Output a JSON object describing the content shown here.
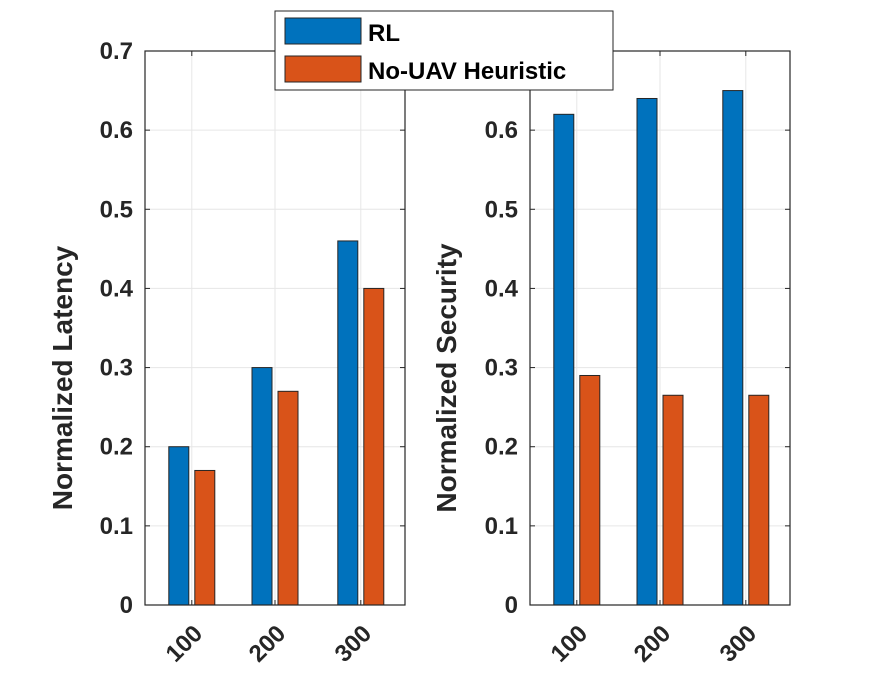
{
  "chart_data": [
    {
      "type": "bar",
      "categories": [
        "100",
        "200",
        "300"
      ],
      "series": [
        {
          "name": "RL",
          "values": [
            0.2,
            0.3,
            0.46
          ]
        },
        {
          "name": "No-UAV Heuristic",
          "values": [
            0.17,
            0.27,
            0.4
          ]
        }
      ],
      "title": "",
      "xlabel": "",
      "ylabel": "Normalized Latency",
      "ylim": [
        0,
        0.7
      ],
      "yticks": [
        "0",
        "0.1",
        "0.2",
        "0.3",
        "0.4",
        "0.5",
        "0.6",
        "0.7"
      ],
      "grid": true
    },
    {
      "type": "bar",
      "categories": [
        "100",
        "200",
        "300"
      ],
      "series": [
        {
          "name": "RL",
          "values": [
            0.62,
            0.64,
            0.65
          ]
        },
        {
          "name": "No-UAV Heuristic",
          "values": [
            0.29,
            0.265,
            0.265
          ]
        }
      ],
      "title": "",
      "xlabel": "",
      "ylabel": "Normalized Security",
      "ylim": [
        0,
        0.7
      ],
      "yticks": [
        "0",
        "0.1",
        "0.2",
        "0.3",
        "0.4",
        "0.5",
        "0.6"
      ],
      "grid": true
    }
  ],
  "legend": {
    "entries": [
      "RL",
      "No-UAV Heuristic"
    ],
    "placement": "top-center"
  },
  "colors": {
    "series": [
      "#0072BD",
      "#D95319"
    ],
    "axis": "#262626",
    "grid": "#e6e6e6"
  }
}
